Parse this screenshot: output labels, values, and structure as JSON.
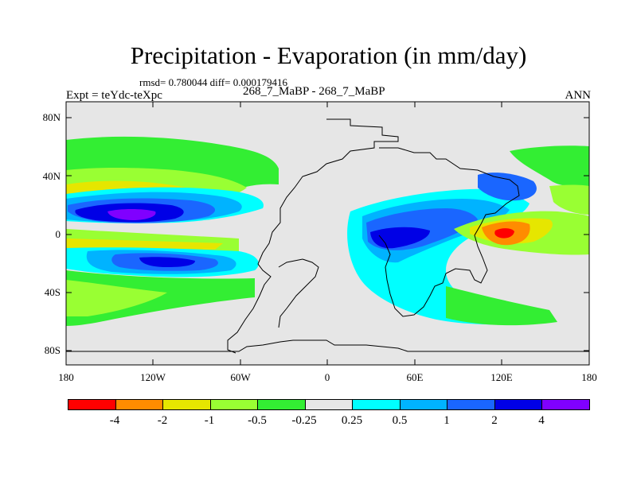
{
  "header": {
    "title": "Precipitation - Evaporation (in mm/day)",
    "stats": "rmsd= 0.780044 diff= 0.000179416",
    "left_label": "Expt = teYdc-teXpc",
    "center_label": "268_7_MaBP - 268_7_MaBP",
    "right_label": "ANN"
  },
  "axes": {
    "lat_labels": [
      "80N",
      "40N",
      "0",
      "40S",
      "80S"
    ],
    "lon_labels": [
      "180",
      "120W",
      "60W",
      "0",
      "60E",
      "120E",
      "180"
    ]
  },
  "legend": {
    "colors": [
      "#ff0000",
      "#ff8c00",
      "#e6e600",
      "#99ff33",
      "#33ee33",
      "#e6e6e6",
      "#e6e6e6",
      "#00ffff",
      "#00b3ff",
      "#1a66ff",
      "#0000e6",
      "#8000ff"
    ],
    "labels": [
      "-4",
      "-2",
      "-1",
      "-0.5",
      "-0.25",
      "0.25",
      "0.5",
      "1",
      "2",
      "4"
    ]
  },
  "colors": {
    "background": "#e6e6e6",
    "frame": "#000000"
  }
}
